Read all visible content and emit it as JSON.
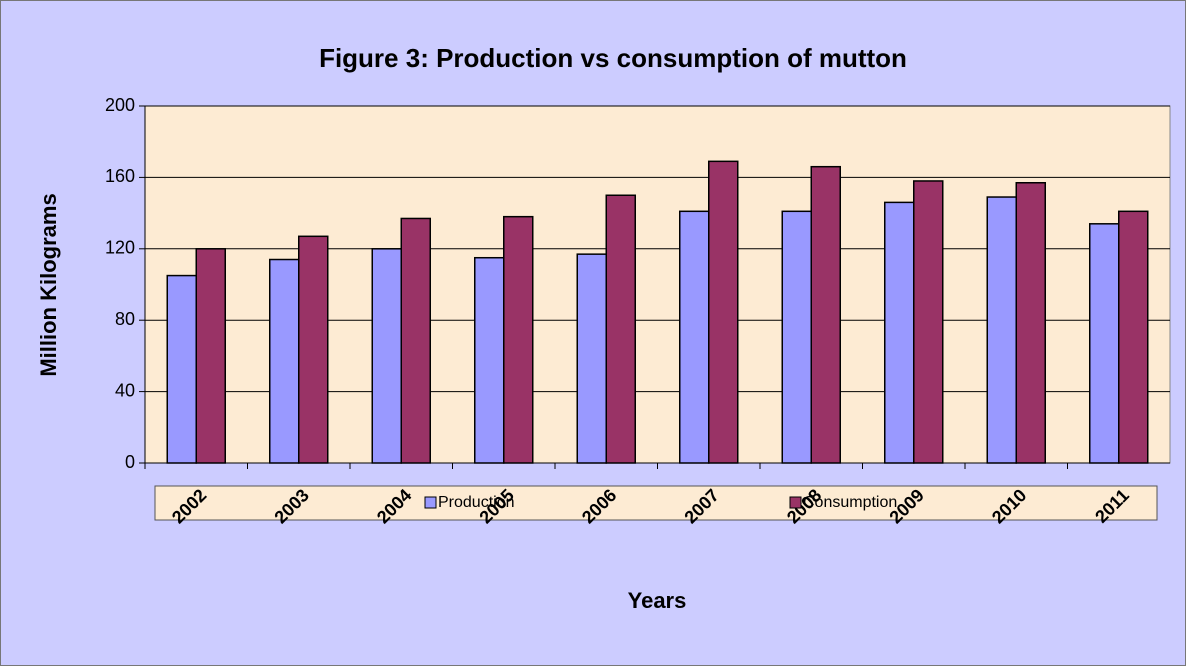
{
  "chart_data": {
    "type": "bar",
    "title": "Figure 3: Production vs consumption of mutton",
    "x_label": "Years",
    "y_label": "Million Kilograms",
    "categories": [
      "2002",
      "2003",
      "2004",
      "2005",
      "2006",
      "2007",
      "2008",
      "2009",
      "2010",
      "2011"
    ],
    "series": [
      {
        "name": "Production",
        "color": "#9999ff",
        "values": [
          105,
          114,
          120,
          115,
          117,
          141,
          141,
          146,
          149,
          134
        ]
      },
      {
        "name": "Consumption",
        "color": "#993366",
        "values": [
          120,
          127,
          137,
          138,
          150,
          169,
          166,
          158,
          157,
          141
        ]
      }
    ],
    "ylim": [
      0,
      200
    ],
    "yticks": [
      0,
      40,
      80,
      120,
      160,
      200
    ],
    "grid": true,
    "legend": "bottom"
  }
}
